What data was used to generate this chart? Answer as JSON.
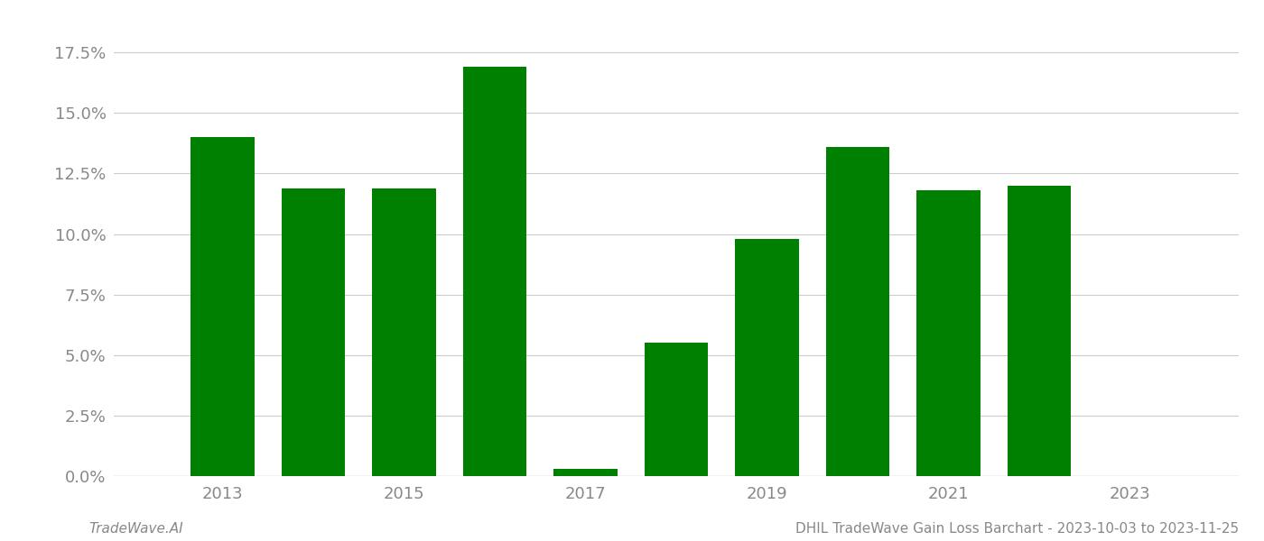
{
  "years": [
    2013,
    2014,
    2015,
    2016,
    2017,
    2018,
    2019,
    2020,
    2021,
    2022
  ],
  "values": [
    0.14,
    0.119,
    0.119,
    0.169,
    0.003,
    0.055,
    0.098,
    0.136,
    0.118,
    0.12
  ],
  "bar_color": "#008000",
  "background_color": "#ffffff",
  "grid_color": "#cccccc",
  "tick_label_color": "#888888",
  "footer_left": "TradeWave.AI",
  "footer_right": "DHIL TradeWave Gain Loss Barchart - 2023-10-03 to 2023-11-25",
  "ylim": [
    0,
    0.19
  ],
  "yticks": [
    0.0,
    0.025,
    0.05,
    0.075,
    0.1,
    0.125,
    0.15,
    0.175
  ],
  "xtick_years": [
    2013,
    2015,
    2017,
    2019,
    2021,
    2023
  ],
  "xlim": [
    2011.8,
    2024.2
  ],
  "bar_width": 0.7,
  "figsize": [
    14.0,
    6.0
  ],
  "dpi": 100
}
